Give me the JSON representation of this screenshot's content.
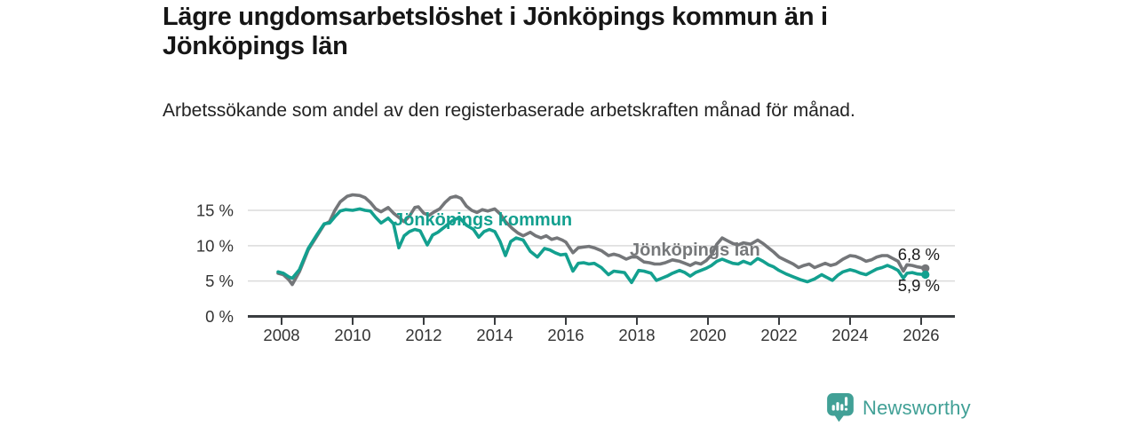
{
  "header": {
    "title": "Lägre ungdomsarbetslöshet i Jönköpings kommun än i Jönköpings län",
    "subtitle": "Arbetssökande som andel av den registerbaserade arbetskraften månad för månad."
  },
  "footer": {
    "brand": "Newsworthy"
  },
  "colors": {
    "kommun_line": "#13A08F",
    "lan_line": "#747679",
    "grid": "#DBDBDB",
    "axis": "#3A3D40",
    "tick_text": "#333333",
    "value_text": "#1A1A1A",
    "brand_teal": "#41A096"
  },
  "chart_data": {
    "type": "line",
    "title": "Lägre ungdomsarbetslöshet i Jönköpings kommun än i Jönköpings län",
    "subtitle": "Arbetssökande som andel av den registerbaserade arbetskraften månad för månad.",
    "xlabel": "",
    "ylabel": "",
    "unit": "%",
    "ylim": [
      0,
      18
    ],
    "xlim": [
      2007.5,
      2027
    ],
    "grid": true,
    "legend": "inline-labels",
    "y_ticks": [
      {
        "value": 0,
        "label": "0 %"
      },
      {
        "value": 5,
        "label": "5 %"
      },
      {
        "value": 10,
        "label": "10 %"
      },
      {
        "value": 15,
        "label": "15 %"
      }
    ],
    "x_ticks": [
      {
        "value": 2008,
        "label": "2008"
      },
      {
        "value": 2010,
        "label": "2010"
      },
      {
        "value": 2012,
        "label": "2012"
      },
      {
        "value": 2014,
        "label": "2014"
      },
      {
        "value": 2016,
        "label": "2016"
      },
      {
        "value": 2018,
        "label": "2018"
      },
      {
        "value": 2020,
        "label": "2020"
      },
      {
        "value": 2022,
        "label": "2022"
      },
      {
        "value": 2024,
        "label": "2024"
      },
      {
        "value": 2026,
        "label": "2026"
      }
    ],
    "series": [
      {
        "name": "Jönköpings län",
        "color": "#747679",
        "end_label": "6,8 %",
        "end_value": 6.8,
        "points": [
          [
            2007.9,
            6.1
          ],
          [
            2008.05,
            5.9
          ],
          [
            2008.2,
            5.2
          ],
          [
            2008.3,
            4.5
          ],
          [
            2008.5,
            6.3
          ],
          [
            2008.75,
            9.4
          ],
          [
            2009.0,
            11.4
          ],
          [
            2009.2,
            13.0
          ],
          [
            2009.35,
            13.4
          ],
          [
            2009.5,
            15.0
          ],
          [
            2009.65,
            16.2
          ],
          [
            2009.85,
            17.0
          ],
          [
            2010.0,
            17.2
          ],
          [
            2010.2,
            17.1
          ],
          [
            2010.35,
            16.8
          ],
          [
            2010.5,
            16.1
          ],
          [
            2010.65,
            15.2
          ],
          [
            2010.8,
            14.8
          ],
          [
            2011.0,
            15.4
          ],
          [
            2011.15,
            14.6
          ],
          [
            2011.3,
            14.0
          ],
          [
            2011.45,
            13.4
          ],
          [
            2011.6,
            14.2
          ],
          [
            2011.75,
            15.4
          ],
          [
            2011.85,
            15.5
          ],
          [
            2012.0,
            14.6
          ],
          [
            2012.15,
            14.3
          ],
          [
            2012.3,
            14.8
          ],
          [
            2012.45,
            15.2
          ],
          [
            2012.6,
            16.1
          ],
          [
            2012.75,
            16.8
          ],
          [
            2012.9,
            17.0
          ],
          [
            2013.05,
            16.7
          ],
          [
            2013.2,
            15.6
          ],
          [
            2013.35,
            15.0
          ],
          [
            2013.5,
            14.7
          ],
          [
            2013.65,
            15.1
          ],
          [
            2013.8,
            14.9
          ],
          [
            2014.0,
            15.2
          ],
          [
            2014.15,
            14.5
          ],
          [
            2014.3,
            13.4
          ],
          [
            2014.5,
            12.4
          ],
          [
            2014.65,
            11.8
          ],
          [
            2014.8,
            11.4
          ],
          [
            2015.0,
            11.9
          ],
          [
            2015.15,
            11.4
          ],
          [
            2015.3,
            11.1
          ],
          [
            2015.45,
            11.4
          ],
          [
            2015.6,
            10.9
          ],
          [
            2015.75,
            11.1
          ],
          [
            2015.9,
            10.8
          ],
          [
            2016.0,
            10.5
          ],
          [
            2016.2,
            9.0
          ],
          [
            2016.35,
            9.7
          ],
          [
            2016.5,
            9.8
          ],
          [
            2016.65,
            9.9
          ],
          [
            2016.8,
            9.7
          ],
          [
            2017.0,
            9.3
          ],
          [
            2017.2,
            8.6
          ],
          [
            2017.35,
            8.8
          ],
          [
            2017.5,
            8.6
          ],
          [
            2017.7,
            8.1
          ],
          [
            2017.85,
            8.4
          ],
          [
            2018.0,
            8.4
          ],
          [
            2018.2,
            7.7
          ],
          [
            2018.35,
            7.6
          ],
          [
            2018.5,
            7.4
          ],
          [
            2018.65,
            7.4
          ],
          [
            2018.8,
            7.6
          ],
          [
            2019.0,
            8.0
          ],
          [
            2019.2,
            7.8
          ],
          [
            2019.35,
            7.5
          ],
          [
            2019.5,
            7.2
          ],
          [
            2019.65,
            7.6
          ],
          [
            2019.8,
            7.4
          ],
          [
            2019.95,
            7.9
          ],
          [
            2020.1,
            8.7
          ],
          [
            2020.25,
            10.2
          ],
          [
            2020.4,
            11.1
          ],
          [
            2020.55,
            10.7
          ],
          [
            2020.7,
            10.3
          ],
          [
            2020.85,
            10.1
          ],
          [
            2021.0,
            10.4
          ],
          [
            2021.2,
            10.2
          ],
          [
            2021.4,
            10.8
          ],
          [
            2021.55,
            10.3
          ],
          [
            2021.7,
            9.7
          ],
          [
            2021.85,
            9.1
          ],
          [
            2022.0,
            8.4
          ],
          [
            2022.2,
            7.9
          ],
          [
            2022.4,
            7.4
          ],
          [
            2022.55,
            6.9
          ],
          [
            2022.7,
            7.2
          ],
          [
            2022.85,
            7.4
          ],
          [
            2023.0,
            6.9
          ],
          [
            2023.15,
            7.2
          ],
          [
            2023.3,
            7.5
          ],
          [
            2023.45,
            7.2
          ],
          [
            2023.6,
            7.4
          ],
          [
            2023.8,
            8.1
          ],
          [
            2024.0,
            8.6
          ],
          [
            2024.15,
            8.5
          ],
          [
            2024.3,
            8.2
          ],
          [
            2024.45,
            7.8
          ],
          [
            2024.6,
            8.0
          ],
          [
            2024.75,
            8.4
          ],
          [
            2024.9,
            8.6
          ],
          [
            2025.05,
            8.6
          ],
          [
            2025.2,
            8.2
          ],
          [
            2025.35,
            7.8
          ],
          [
            2025.5,
            6.4
          ],
          [
            2025.6,
            7.3
          ],
          [
            2025.75,
            7.2
          ],
          [
            2025.9,
            7.0
          ],
          [
            2026.12,
            6.8
          ]
        ]
      },
      {
        "name": "Jönköpings kommun",
        "color": "#13A08F",
        "end_label": "5,9 %",
        "end_value": 5.9,
        "points": [
          [
            2007.9,
            6.3
          ],
          [
            2008.05,
            6.1
          ],
          [
            2008.2,
            5.6
          ],
          [
            2008.3,
            5.4
          ],
          [
            2008.5,
            6.6
          ],
          [
            2008.75,
            9.6
          ],
          [
            2009.0,
            11.6
          ],
          [
            2009.2,
            13.1
          ],
          [
            2009.35,
            13.2
          ],
          [
            2009.5,
            14.1
          ],
          [
            2009.65,
            14.9
          ],
          [
            2009.8,
            15.1
          ],
          [
            2010.0,
            15.0
          ],
          [
            2010.2,
            15.2
          ],
          [
            2010.35,
            15.0
          ],
          [
            2010.5,
            14.9
          ],
          [
            2010.65,
            14.0
          ],
          [
            2010.8,
            13.2
          ],
          [
            2011.0,
            13.9
          ],
          [
            2011.15,
            13.1
          ],
          [
            2011.3,
            9.7
          ],
          [
            2011.45,
            11.4
          ],
          [
            2011.6,
            12.0
          ],
          [
            2011.75,
            12.3
          ],
          [
            2011.9,
            12.1
          ],
          [
            2012.1,
            10.1
          ],
          [
            2012.25,
            11.5
          ],
          [
            2012.4,
            11.9
          ],
          [
            2012.6,
            12.7
          ],
          [
            2012.8,
            13.5
          ],
          [
            2013.0,
            14.0
          ],
          [
            2013.2,
            12.9
          ],
          [
            2013.4,
            12.3
          ],
          [
            2013.55,
            11.2
          ],
          [
            2013.7,
            12.0
          ],
          [
            2013.85,
            12.3
          ],
          [
            2014.0,
            12.0
          ],
          [
            2014.15,
            10.6
          ],
          [
            2014.3,
            8.6
          ],
          [
            2014.45,
            10.6
          ],
          [
            2014.6,
            11.1
          ],
          [
            2014.8,
            10.8
          ],
          [
            2015.0,
            9.2
          ],
          [
            2015.2,
            8.4
          ],
          [
            2015.4,
            9.6
          ],
          [
            2015.55,
            9.4
          ],
          [
            2015.7,
            9.0
          ],
          [
            2015.85,
            8.7
          ],
          [
            2016.0,
            8.8
          ],
          [
            2016.2,
            6.4
          ],
          [
            2016.35,
            7.5
          ],
          [
            2016.5,
            7.6
          ],
          [
            2016.65,
            7.4
          ],
          [
            2016.8,
            7.5
          ],
          [
            2017.0,
            6.9
          ],
          [
            2017.2,
            5.9
          ],
          [
            2017.35,
            6.4
          ],
          [
            2017.5,
            6.3
          ],
          [
            2017.65,
            6.2
          ],
          [
            2017.85,
            4.8
          ],
          [
            2018.05,
            6.5
          ],
          [
            2018.2,
            6.4
          ],
          [
            2018.4,
            6.1
          ],
          [
            2018.55,
            5.1
          ],
          [
            2018.7,
            5.4
          ],
          [
            2018.85,
            5.7
          ],
          [
            2019.0,
            6.1
          ],
          [
            2019.2,
            6.5
          ],
          [
            2019.35,
            6.2
          ],
          [
            2019.5,
            5.7
          ],
          [
            2019.65,
            6.2
          ],
          [
            2019.8,
            6.5
          ],
          [
            2019.95,
            6.8
          ],
          [
            2020.1,
            7.2
          ],
          [
            2020.25,
            7.8
          ],
          [
            2020.4,
            8.1
          ],
          [
            2020.55,
            7.8
          ],
          [
            2020.7,
            7.5
          ],
          [
            2020.85,
            7.4
          ],
          [
            2021.0,
            7.8
          ],
          [
            2021.2,
            7.4
          ],
          [
            2021.4,
            8.2
          ],
          [
            2021.55,
            7.8
          ],
          [
            2021.7,
            7.3
          ],
          [
            2021.85,
            7.0
          ],
          [
            2022.0,
            6.5
          ],
          [
            2022.2,
            6.0
          ],
          [
            2022.4,
            5.6
          ],
          [
            2022.6,
            5.2
          ],
          [
            2022.8,
            4.9
          ],
          [
            2023.0,
            5.3
          ],
          [
            2023.2,
            5.9
          ],
          [
            2023.35,
            5.5
          ],
          [
            2023.5,
            5.1
          ],
          [
            2023.65,
            5.8
          ],
          [
            2023.8,
            6.3
          ],
          [
            2024.0,
            6.6
          ],
          [
            2024.15,
            6.4
          ],
          [
            2024.3,
            6.1
          ],
          [
            2024.45,
            5.9
          ],
          [
            2024.6,
            6.3
          ],
          [
            2024.75,
            6.7
          ],
          [
            2024.9,
            6.9
          ],
          [
            2025.05,
            7.2
          ],
          [
            2025.2,
            6.9
          ],
          [
            2025.35,
            6.5
          ],
          [
            2025.5,
            5.4
          ],
          [
            2025.6,
            6.1
          ],
          [
            2025.75,
            6.2
          ],
          [
            2025.9,
            6.0
          ],
          [
            2026.12,
            5.9
          ]
        ]
      }
    ]
  }
}
